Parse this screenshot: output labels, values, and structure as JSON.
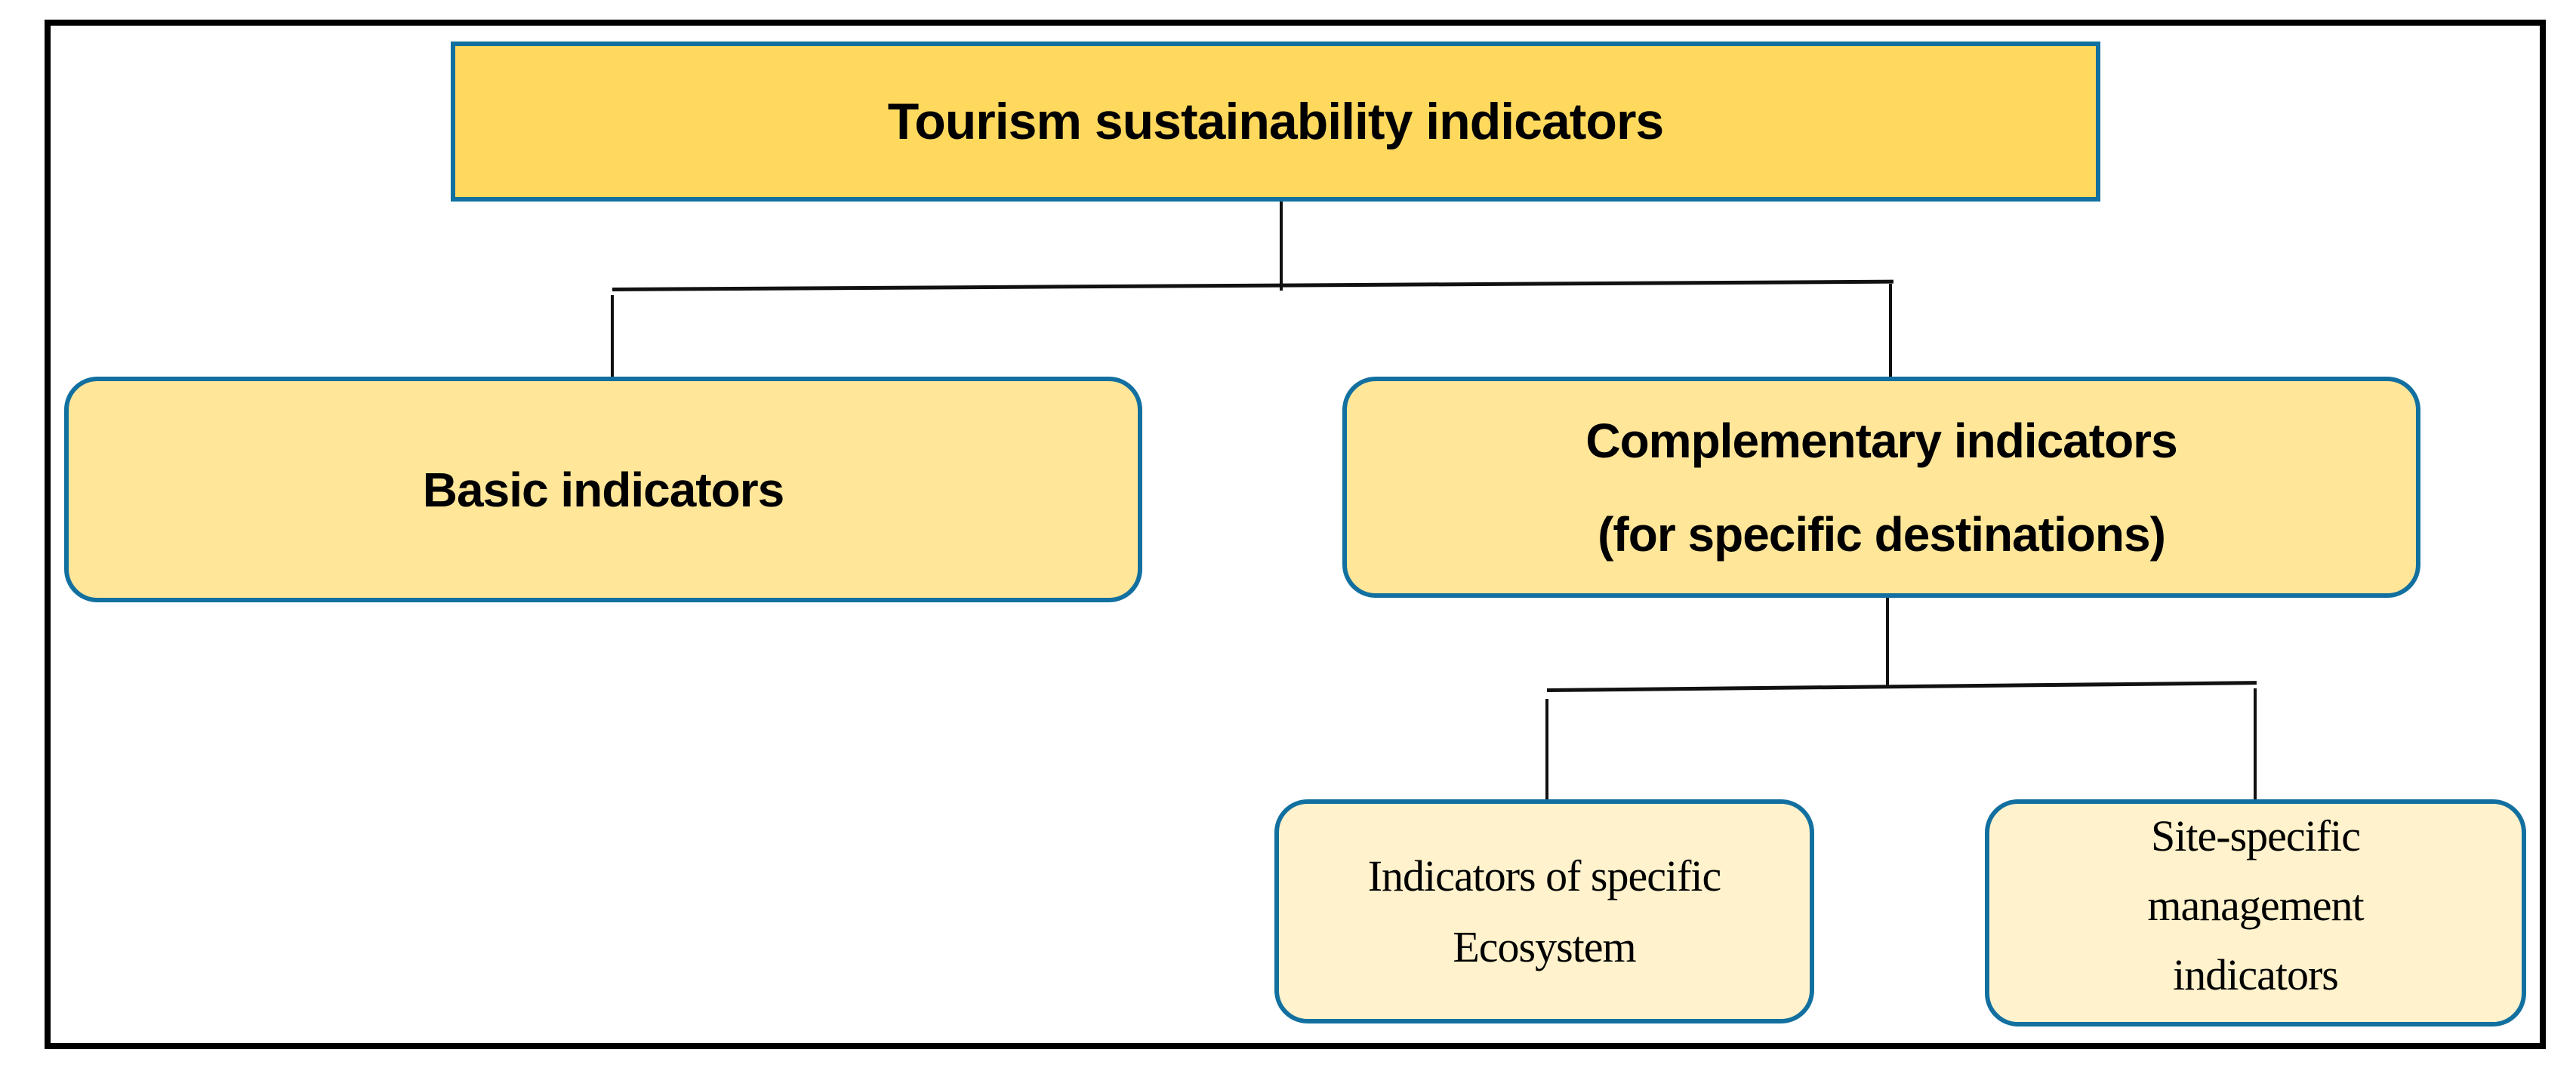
{
  "diagram": {
    "root": {
      "label": "Tourism sustainability indicators"
    },
    "level1": [
      {
        "label": "Basic indicators"
      },
      {
        "line1": "Complementary indicators",
        "line2": "(for specific destinations)"
      }
    ],
    "level2": [
      {
        "line1": "Indicators of specific",
        "line2": "Ecosystem"
      },
      {
        "line1": "Site-specific",
        "line2": "management",
        "line3": "indicators"
      }
    ]
  },
  "colors": {
    "root_fill": "#FFD95E",
    "level1_fill": "#FFE699",
    "level2_fill": "#FFF2CC",
    "box_border": "#1270A0",
    "connector": "#111111"
  }
}
